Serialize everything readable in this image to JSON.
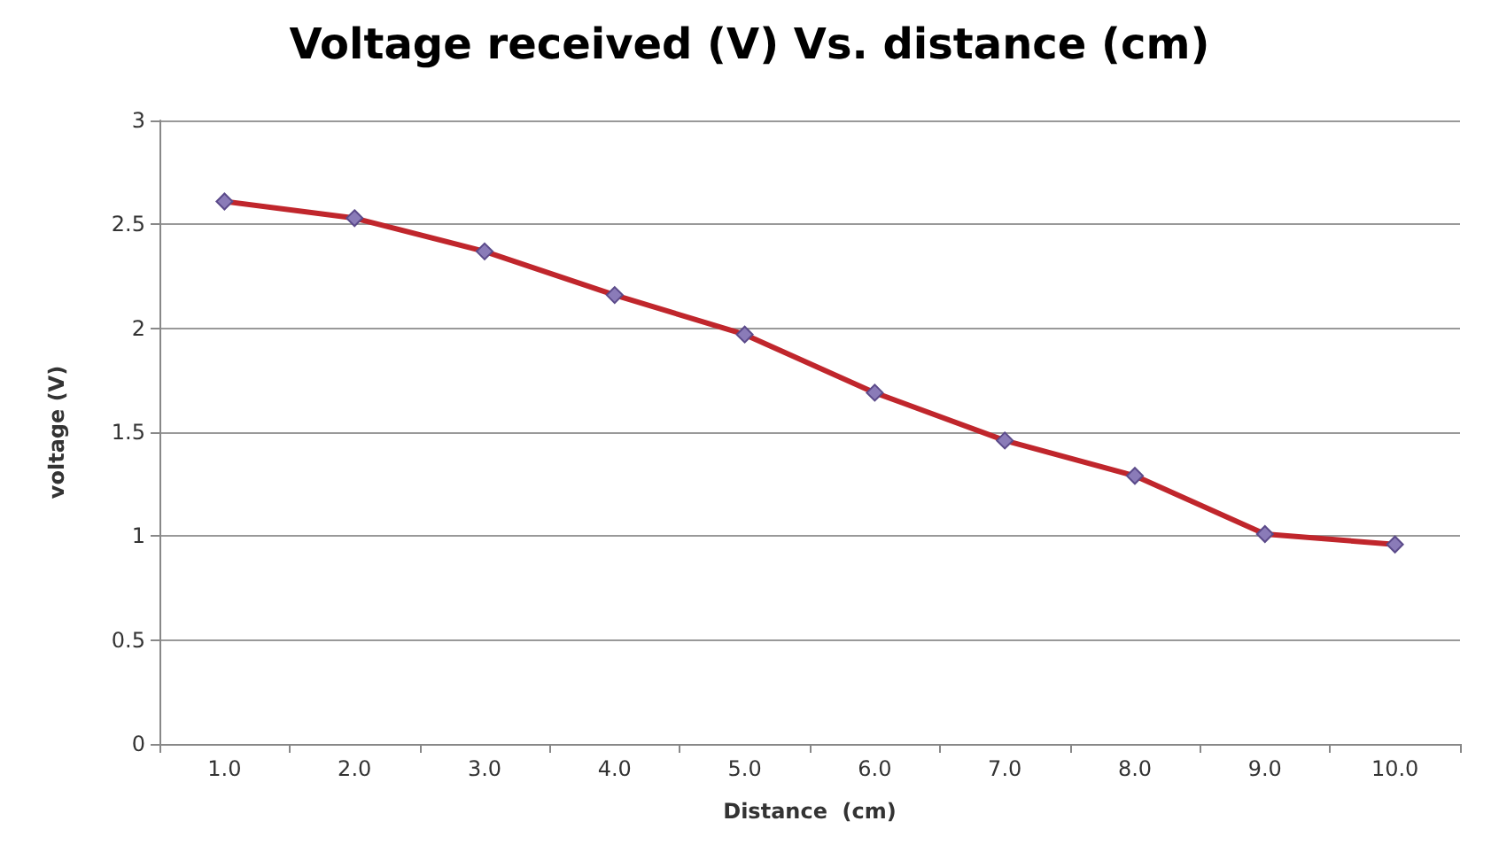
{
  "chart_data": {
    "type": "line",
    "title": "Voltage received (V) Vs. distance (cm)",
    "xlabel": "Distance  (cm)",
    "ylabel": "voltage (V)",
    "categories": [
      "1.0",
      "2.0",
      "3.0",
      "4.0",
      "5.0",
      "6.0",
      "7.0",
      "8.0",
      "9.0",
      "10.0"
    ],
    "series": [
      {
        "color": "#c0262c",
        "values": [
          2.61,
          2.53,
          2.37,
          2.16,
          1.97,
          1.69,
          1.46,
          1.29,
          1.01,
          0.96
        ]
      }
    ],
    "ylim": [
      0,
      3
    ],
    "yticks": [
      0,
      0.5,
      1,
      1.5,
      2,
      2.5,
      3
    ],
    "grid": "y",
    "marker": "diamond",
    "line_style": "solid"
  }
}
